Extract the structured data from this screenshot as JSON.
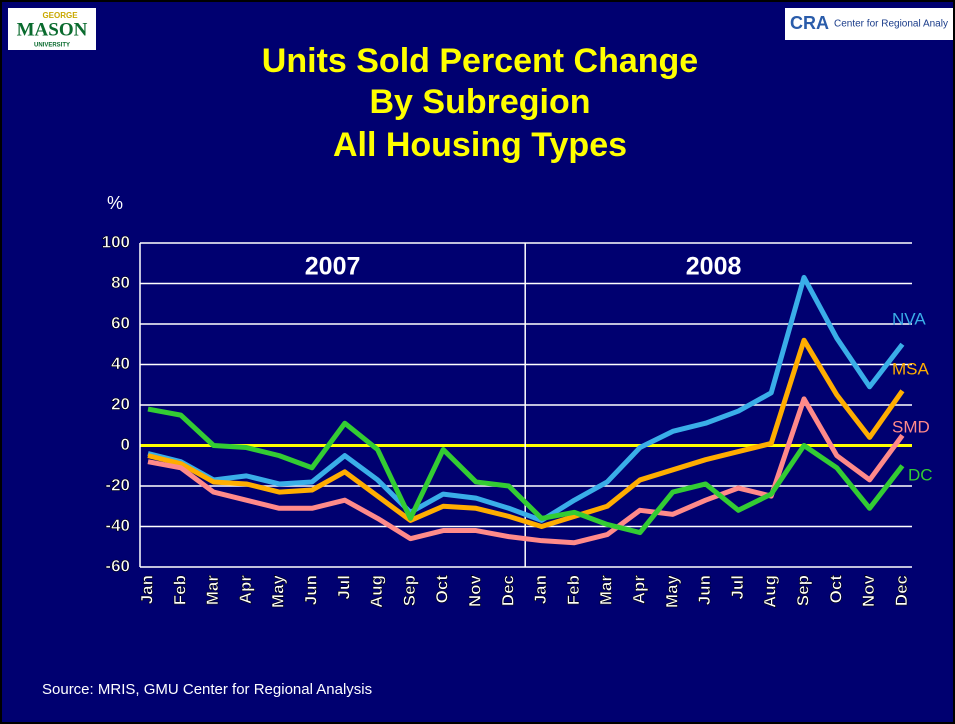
{
  "logos": {
    "left_small": "GEORGE",
    "left": "MASON",
    "left_bottom": "UNIVERSITY",
    "right_mark": "CRA",
    "right": "Center for Regional Analy"
  },
  "chart_data": {
    "type": "line",
    "title": [
      "Units Sold Percent Change",
      "By Subregion",
      "All Housing Types"
    ],
    "y_axis_label": "%",
    "annotations": [
      "2007",
      "2008"
    ],
    "source": "Source: MRIS, GMU Center for Regional Analysis",
    "categories": [
      "Jan",
      "Feb",
      "Mar",
      "Apr",
      "May",
      "Jun",
      "Jul",
      "Aug",
      "Sep",
      "Oct",
      "Nov",
      "Dec",
      "Jan",
      "Feb",
      "Mar",
      "Apr",
      "May",
      "Jun",
      "Jul",
      "Aug",
      "Sep",
      "Oct",
      "Nov",
      "Dec"
    ],
    "series": [
      {
        "name": "NVA",
        "color": "#3aaee8",
        "values": [
          -4,
          -8,
          -17,
          -15,
          -19,
          -18,
          -5,
          -17,
          -33,
          -24,
          -26,
          -31,
          -37,
          -27,
          -18,
          -1,
          7,
          11,
          17,
          26,
          83,
          53,
          29,
          50
        ]
      },
      {
        "name": "MSA",
        "color": "#ffad00",
        "values": [
          -5,
          -9,
          -18,
          -19,
          -23,
          -22,
          -13,
          -25,
          -37,
          -30,
          -31,
          -35,
          -40,
          -35,
          -30,
          -17,
          -12,
          -7,
          -3,
          1,
          52,
          25,
          4,
          27
        ]
      },
      {
        "name": "SMD",
        "color": "#ff8a8a",
        "values": [
          -8,
          -11,
          -23,
          -27,
          -31,
          -31,
          -27,
          -36,
          -46,
          -42,
          -42,
          -45,
          -47,
          -48,
          -44,
          -32,
          -34,
          -27,
          -21,
          -25,
          23,
          -5,
          -17,
          5
        ]
      },
      {
        "name": "DC",
        "color": "#33cc33",
        "values": [
          18,
          15,
          0,
          -1,
          -5,
          -11,
          11,
          -2,
          -36,
          -2,
          -18,
          -20,
          -36,
          -33,
          -39,
          -43,
          -23,
          -19,
          -32,
          -24,
          0,
          -11,
          -31,
          -10
        ]
      }
    ],
    "ylim": [
      -60,
      100
    ],
    "yticks": [
      -60,
      -40,
      -20,
      0,
      20,
      40,
      60,
      80,
      100
    ],
    "grid": true,
    "grid_color": "#ffffff",
    "zero_line_color": "#ffff00"
  }
}
